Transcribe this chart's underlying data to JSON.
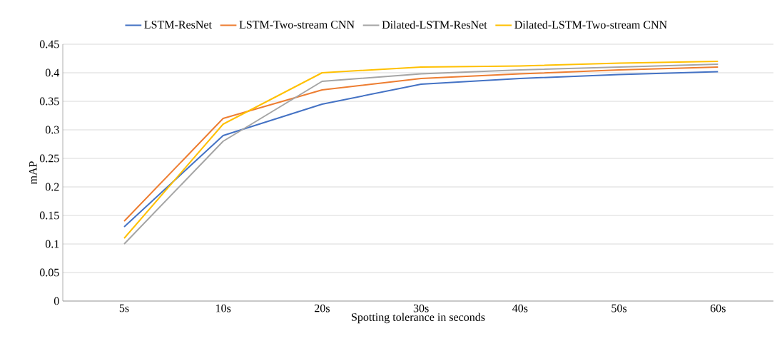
{
  "chart_data": {
    "type": "line",
    "xlabel": "Spotting tolerance in seconds",
    "ylabel": "mAP",
    "categories": [
      "5s",
      "10s",
      "20s",
      "30s",
      "40s",
      "50s",
      "60s"
    ],
    "series": [
      {
        "name": "LSTM-ResNet",
        "color": "#4472c4",
        "values": [
          0.13,
          0.29,
          0.345,
          0.38,
          0.39,
          0.397,
          0.402
        ]
      },
      {
        "name": "LSTM-Two-stream CNN",
        "color": "#ed7d31",
        "values": [
          0.14,
          0.32,
          0.37,
          0.39,
          0.398,
          0.405,
          0.41
        ]
      },
      {
        "name": "Dilated-LSTM-ResNet",
        "color": "#a5a5a5",
        "values": [
          0.1,
          0.28,
          0.385,
          0.398,
          0.405,
          0.41,
          0.415
        ]
      },
      {
        "name": "Dilated-LSTM-Two-stream CNN",
        "color": "#ffc000",
        "values": [
          0.11,
          0.31,
          0.4,
          0.41,
          0.412,
          0.417,
          0.42
        ]
      }
    ],
    "ylim": [
      0,
      0.45
    ],
    "yticks": [
      0,
      0.05,
      0.1,
      0.15,
      0.2,
      0.25,
      0.3,
      0.35,
      0.4,
      0.45
    ],
    "grid": "y",
    "legend": "top"
  }
}
